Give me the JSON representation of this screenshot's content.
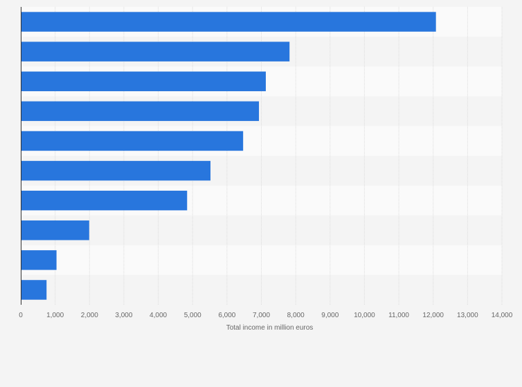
{
  "chart_data": {
    "type": "bar",
    "orientation": "horizontal",
    "categories": [
      "",
      "",
      "",
      "",
      "",
      "",
      "",
      "",
      "",
      ""
    ],
    "values": [
      12080,
      7820,
      7130,
      6930,
      6470,
      5520,
      4840,
      1990,
      1040,
      750
    ],
    "title": "",
    "xlabel": "Total income in million euros",
    "ylabel": "",
    "xlim": [
      0,
      14000
    ],
    "x_ticks": [
      0,
      1000,
      2000,
      3000,
      4000,
      5000,
      6000,
      7000,
      8000,
      9000,
      10000,
      11000,
      12000,
      13000,
      14000
    ],
    "x_tick_labels": [
      "0",
      "1,000",
      "2,000",
      "3,000",
      "4,000",
      "5,000",
      "6,000",
      "7,000",
      "8,000",
      "9,000",
      "10,000",
      "11,000",
      "12,000",
      "13,000",
      "14,000"
    ],
    "grid": true,
    "legend": "none",
    "colors": {
      "bar": "#2876dd",
      "background": "#f4f4f4",
      "band_light": "#fafafa",
      "band_dark": "#f4f4f4",
      "grid": "#dcdcdc",
      "axis": "#333333",
      "text": "#666666"
    }
  }
}
